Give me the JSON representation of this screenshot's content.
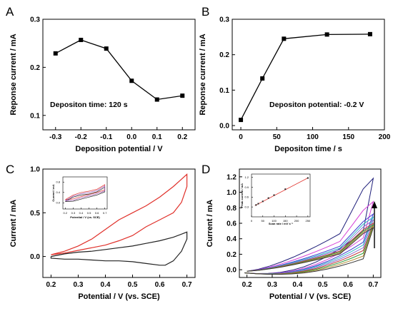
{
  "chart_data": [
    {
      "id": "A",
      "type": "line",
      "panel_label": "A",
      "xlabel": "Deposition potential / V",
      "ylabel": "Reponse current / mA",
      "annotation": "Depositon time: 120 s",
      "xlim": [
        -0.35,
        0.25
      ],
      "ylim": [
        0.07,
        0.3
      ],
      "xticks": [
        -0.3,
        -0.2,
        -0.1,
        0.0,
        0.1,
        0.2
      ],
      "xtick_labels": [
        "-0.3",
        "-0.2",
        "-0.1",
        "0.0",
        "0.1",
        "0.2"
      ],
      "yticks": [
        0.1,
        0.2,
        0.3
      ],
      "ytick_labels": [
        "0.1",
        "0.2",
        "0.3"
      ],
      "series": [
        {
          "x": [
            -0.3,
            -0.2,
            -0.1,
            0.0,
            0.1,
            0.2
          ],
          "y": [
            0.229,
            0.257,
            0.239,
            0.172,
            0.133,
            0.141
          ],
          "color": "#000000",
          "marker": "square"
        }
      ]
    },
    {
      "id": "B",
      "type": "line",
      "panel_label": "B",
      "xlabel": "Depositon time / s",
      "ylabel": "Reponse current / mA",
      "annotation": "Depositon potential: -0.2 V",
      "xlim": [
        -12,
        200
      ],
      "ylim": [
        -0.012,
        0.3
      ],
      "xticks": [
        0,
        50,
        100,
        150,
        200
      ],
      "xtick_labels": [
        "0",
        "50",
        "100",
        "150",
        "200"
      ],
      "yticks": [
        0.0,
        0.1,
        0.2,
        0.3
      ],
      "ytick_labels": [
        "0.0",
        "0.1",
        "0.2",
        "0.3"
      ],
      "series": [
        {
          "x": [
            0,
            30,
            60,
            120,
            180
          ],
          "y": [
            0.016,
            0.133,
            0.245,
            0.257,
            0.258
          ],
          "color": "#000000",
          "marker": "square"
        }
      ]
    },
    {
      "id": "C",
      "type": "line",
      "panel_label": "C",
      "xlabel": "Potential / V (vs. SCE)",
      "ylabel": "Current / mA",
      "xlim": [
        0.17,
        0.73
      ],
      "ylim": [
        -0.24,
        1.0
      ],
      "xticks": [
        0.2,
        0.3,
        0.4,
        0.5,
        0.6,
        0.7
      ],
      "xtick_labels": [
        "0.2",
        "0.3",
        "0.4",
        "0.5",
        "0.6",
        "0.7"
      ],
      "yticks": [
        0.0,
        0.5,
        1.0
      ],
      "ytick_labels": [
        "0.0",
        "0.5",
        "1.0"
      ],
      "series": [
        {
          "color": "#e0302a",
          "x": [
            0.2,
            0.25,
            0.3,
            0.35,
            0.4,
            0.45,
            0.5,
            0.55,
            0.6,
            0.65,
            0.7,
            0.7,
            0.68,
            0.65,
            0.6,
            0.55,
            0.5,
            0.45,
            0.4,
            0.35,
            0.3,
            0.25,
            0.2,
            0.2
          ],
          "y": [
            0.02,
            0.06,
            0.12,
            0.2,
            0.31,
            0.42,
            0.5,
            0.58,
            0.68,
            0.8,
            0.94,
            0.8,
            0.62,
            0.5,
            0.42,
            0.34,
            0.24,
            0.18,
            0.13,
            0.1,
            0.07,
            0.04,
            0.02,
            0.02
          ]
        },
        {
          "color": "#222222",
          "x": [
            0.2,
            0.25,
            0.3,
            0.35,
            0.4,
            0.45,
            0.5,
            0.55,
            0.6,
            0.65,
            0.7,
            0.7,
            0.68,
            0.65,
            0.62,
            0.6,
            0.55,
            0.5,
            0.45,
            0.4,
            0.35,
            0.3,
            0.25,
            0.2,
            0.2
          ],
          "y": [
            0.0,
            0.03,
            0.05,
            0.06,
            0.08,
            0.1,
            0.12,
            0.15,
            0.18,
            0.22,
            0.28,
            0.2,
            0.06,
            -0.05,
            -0.1,
            -0.1,
            -0.08,
            -0.06,
            -0.05,
            -0.05,
            -0.04,
            -0.03,
            -0.03,
            -0.02,
            0.0
          ]
        }
      ],
      "inset": {
        "xlabel": "Potential / V (vs. SCE)",
        "ylabel": "Current / mA",
        "xlim": [
          0.17,
          0.73
        ],
        "ylim": [
          -0.24,
          1.0
        ],
        "xticks": [
          0.2,
          0.3,
          0.4,
          0.5,
          0.6,
          0.7
        ],
        "xtick_labels": [
          "0.2",
          "0.3",
          "0.4",
          "0.5",
          "0.6",
          "0.7"
        ],
        "yticks": [
          0.0,
          0.4,
          0.8
        ],
        "ytick_labels": [
          "0.0",
          "0.4",
          "0.8"
        ],
        "series": [
          {
            "color": "#e0302a",
            "x": [
              0.2,
              0.3,
              0.4,
              0.5,
              0.6,
              0.7,
              0.7,
              0.6,
              0.5,
              0.4,
              0.3,
              0.2
            ],
            "y": [
              0.12,
              0.3,
              0.4,
              0.45,
              0.52,
              0.7,
              0.5,
              0.4,
              0.32,
              0.24,
              0.15,
              0.12
            ]
          },
          {
            "color": "#222222",
            "x": [
              0.2,
              0.3,
              0.4,
              0.5,
              0.6,
              0.7,
              0.7,
              0.6,
              0.5,
              0.4,
              0.3,
              0.2
            ],
            "y": [
              0.05,
              0.22,
              0.3,
              0.34,
              0.42,
              0.6,
              0.42,
              0.3,
              0.22,
              0.14,
              0.06,
              0.05
            ]
          },
          {
            "color": "#9a4fb0",
            "x": [
              0.2,
              0.3,
              0.4,
              0.5,
              0.6,
              0.7,
              0.7,
              0.6,
              0.5,
              0.4,
              0.3,
              0.2
            ],
            "y": [
              0.08,
              0.26,
              0.35,
              0.4,
              0.47,
              0.65,
              0.46,
              0.35,
              0.27,
              0.19,
              0.1,
              0.08
            ]
          }
        ]
      }
    },
    {
      "id": "D",
      "type": "line",
      "panel_label": "D",
      "xlabel": "Potential / V (vs. SCE)",
      "ylabel": "Current / mA",
      "xlim": [
        0.17,
        0.73
      ],
      "ylim": [
        -0.1,
        1.3
      ],
      "xticks": [
        0.2,
        0.3,
        0.4,
        0.5,
        0.6,
        0.7
      ],
      "xtick_labels": [
        "0.2",
        "0.3",
        "0.4",
        "0.5",
        "0.6",
        "0.7"
      ],
      "yticks": [
        0.0,
        0.2,
        0.4,
        0.6,
        0.8,
        1.0,
        1.2
      ],
      "ytick_labels": [
        "0.0",
        "0.2",
        "0.4",
        "0.6",
        "0.8",
        "1.0",
        "1.2"
      ],
      "series": [
        {
          "color": "#1f1f7a",
          "peak": 1.18,
          "oxbase": 0.78,
          "red": 0.3
        },
        {
          "color": "#d63fd6",
          "peak": 0.88,
          "oxbase": 0.62,
          "red": 0.25
        },
        {
          "color": "#3b3bd0",
          "peak": 0.72,
          "oxbase": 0.52,
          "red": 0.22
        },
        {
          "color": "#2fb7c8",
          "peak": 0.68,
          "oxbase": 0.48,
          "red": 0.2
        },
        {
          "color": "#8a6fd0",
          "peak": 0.64,
          "oxbase": 0.45,
          "red": 0.18
        },
        {
          "color": "#c03a3a",
          "peak": 0.6,
          "oxbase": 0.42,
          "red": 0.16
        },
        {
          "color": "#2e9a3a",
          "peak": 0.58,
          "oxbase": 0.4,
          "red": 0.14
        },
        {
          "color": "#b08a30",
          "peak": 0.56,
          "oxbase": 0.38,
          "red": 0.12
        },
        {
          "color": "#333333",
          "peak": 0.54,
          "oxbase": 0.36,
          "red": 0.1
        }
      ],
      "inset": {
        "xlabel": "Scan rate / mV s⁻¹",
        "ylabel": "Peak current / mA",
        "xlim": [
          0,
          260
        ],
        "ylim": [
          0.0,
          1.3
        ],
        "xticks": [
          0,
          50,
          100,
          150,
          200,
          250
        ],
        "xtick_labels": [
          "0",
          "50",
          "100",
          "150",
          "200",
          "250"
        ],
        "yticks": [
          0.3,
          0.6,
          0.9,
          1.2
        ],
        "ytick_labels": [
          "0.3",
          "0.6",
          "0.9",
          "1.2"
        ],
        "points_x": [
          20,
          30,
          50,
          75,
          100,
          150,
          250
        ],
        "points_y": [
          0.36,
          0.4,
          0.47,
          0.57,
          0.66,
          0.84,
          1.18
        ],
        "fit_x": [
          15,
          250
        ],
        "fit_y": [
          0.34,
          1.18
        ]
      }
    }
  ]
}
